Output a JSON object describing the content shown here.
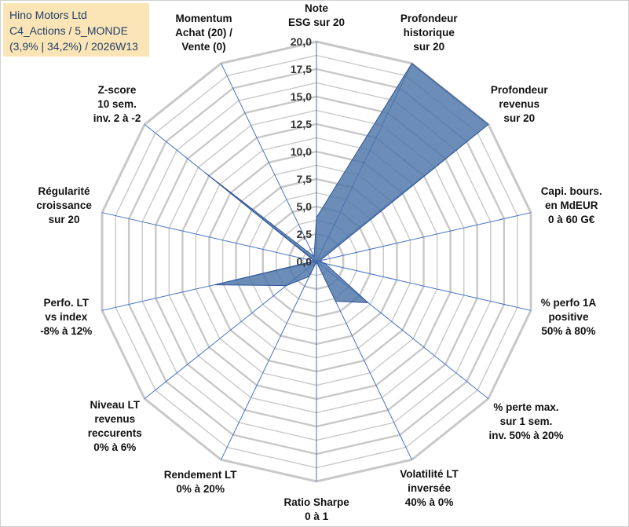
{
  "title_box": {
    "line1": "Hino Motors Ltd",
    "line2": "C4_Actions / 5_MONDE",
    "line3": "(3,9% | 34,2%) / 2026W13",
    "background": "#fbe5b6",
    "text_color": "#1f3f6a"
  },
  "chart_data": {
    "type": "radar",
    "title": "Hino Motors Ltd",
    "rmax": 20,
    "rings": 16,
    "tick_values": [
      "0,0",
      "2,5",
      "5,0",
      "7,5",
      "10,0",
      "12,5",
      "15,0",
      "17,5",
      "20,0"
    ],
    "fill_color": "#4a74a8",
    "axis_color": "#4472c4",
    "grid_color": "#c8c8c8",
    "axes": [
      {
        "lines": [
          "Note",
          "ESG sur 20"
        ],
        "value": 4.0
      },
      {
        "lines": [
          "Profondeur",
          "historique",
          "sur 20"
        ],
        "value": 20.0
      },
      {
        "lines": [
          "Profondeur",
          "revenus",
          "sur 20"
        ],
        "value": 20.0
      },
      {
        "lines": [
          "Capi. bours.",
          "en MdEUR",
          "0 à 60 G€"
        ],
        "value": 0.3
      },
      {
        "lines": [
          "% perfo 1A",
          "positive",
          "50% à 80%"
        ],
        "value": 0.8
      },
      {
        "lines": [
          "% perte max.",
          "sur 1 sem.",
          "inv. 50% à 20%"
        ],
        "value": 6.0
      },
      {
        "lines": [
          "Volatilité LT",
          "inversée",
          "40% à 0%"
        ],
        "value": 4.0
      },
      {
        "lines": [
          "Ratio Sharpe",
          "0 à 1"
        ],
        "value": 0.0
      },
      {
        "lines": [
          "Rendement LT",
          "0% à 20%"
        ],
        "value": 1.5
      },
      {
        "lines": [
          "Niveau LT",
          "revenus",
          "reccurents",
          "0% à 6%"
        ],
        "value": 3.5
      },
      {
        "lines": [
          "Perfo. LT",
          "vs index",
          "-8% à 12%"
        ],
        "value": 9.5
      },
      {
        "lines": [
          "Régularité",
          "croissance",
          "sur 20"
        ],
        "value": 0.2
      },
      {
        "lines": [
          "Z-score",
          "10 sem.",
          "inv. 2 à -2"
        ],
        "value": 13.0
      },
      {
        "lines": [
          "Momentum",
          "Achat (20) /",
          "Vente (0)"
        ],
        "value": 0.5
      }
    ]
  }
}
